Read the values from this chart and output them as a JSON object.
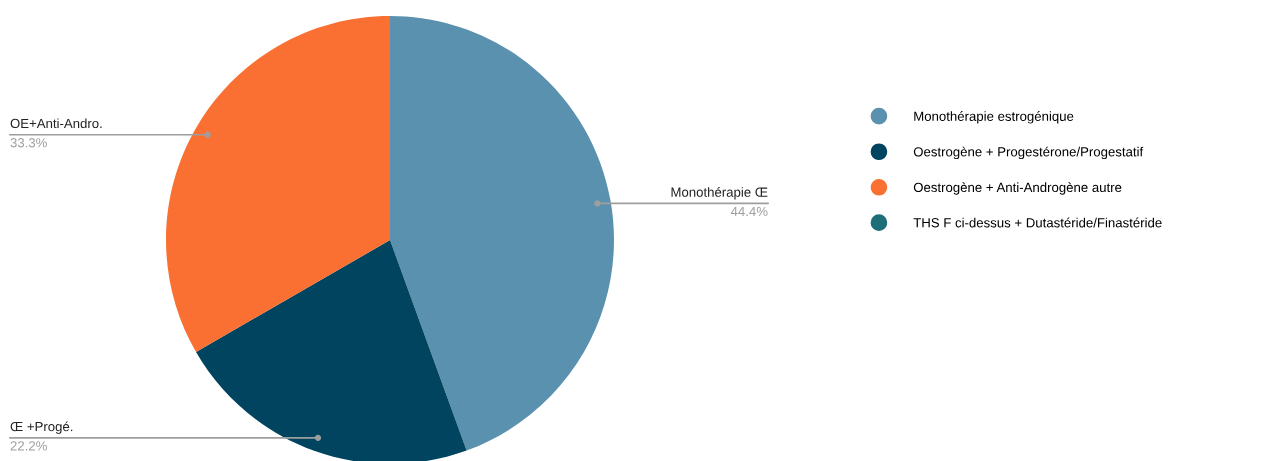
{
  "chart_data": {
    "type": "pie",
    "categories": [
      "Monothérapie estrogénique",
      "Oestrogène + Progestérone/Progestatif",
      "Oestrogène + Anti-Androgène autre",
      "THS F ci-dessus + Dutastéride/Finastéride"
    ],
    "values": [
      44.4,
      22.2,
      33.3,
      0
    ],
    "colors": [
      "#5a91ae",
      "#00445f",
      "#f97032",
      "#1d6e78"
    ],
    "value_labels": [
      "44.4%",
      "22.2%",
      "33.3%",
      null
    ],
    "annotations": [
      "Monothérapie Œ",
      "Œ +Progé.",
      "OE+Anti-Andro."
    ],
    "legend": "right"
  }
}
